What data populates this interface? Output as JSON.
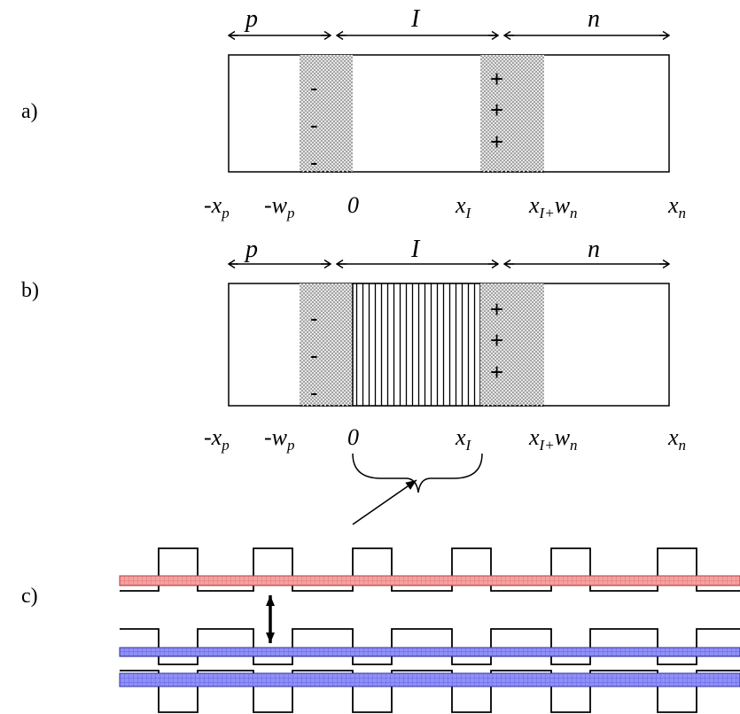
{
  "panels": [
    {
      "id": "a",
      "label": "a)",
      "regions": [
        "p",
        "I",
        "n"
      ],
      "negative_charges": [
        "-",
        "-",
        "-"
      ],
      "positive_charges": [
        "+",
        "+",
        "+"
      ],
      "intrinsic_fill": "none"
    },
    {
      "id": "b",
      "label": "b)",
      "regions": [
        "p",
        "I",
        "n"
      ],
      "negative_charges": [
        "-",
        "-",
        "-"
      ],
      "positive_charges": [
        "+",
        "+",
        "+"
      ],
      "intrinsic_fill": "vertical-lines"
    },
    {
      "id": "c",
      "label": "c)",
      "description_type": "superlattice band profile"
    }
  ],
  "positions": [
    {
      "base": "-x",
      "sub": "p"
    },
    {
      "base": "-w",
      "sub": "p"
    },
    {
      "base": "0",
      "sub": ""
    },
    {
      "base": "x",
      "sub": "I"
    },
    {
      "base": "x",
      "sub": "I+",
      "tail": "w",
      "tail_sub": "n"
    },
    {
      "base": "x",
      "sub": "n"
    }
  ],
  "colors": {
    "depletion_fill": "#c8c8c8",
    "conduction_band": "#f08080",
    "valence_band": "#7070f0",
    "outline": "#000000"
  }
}
